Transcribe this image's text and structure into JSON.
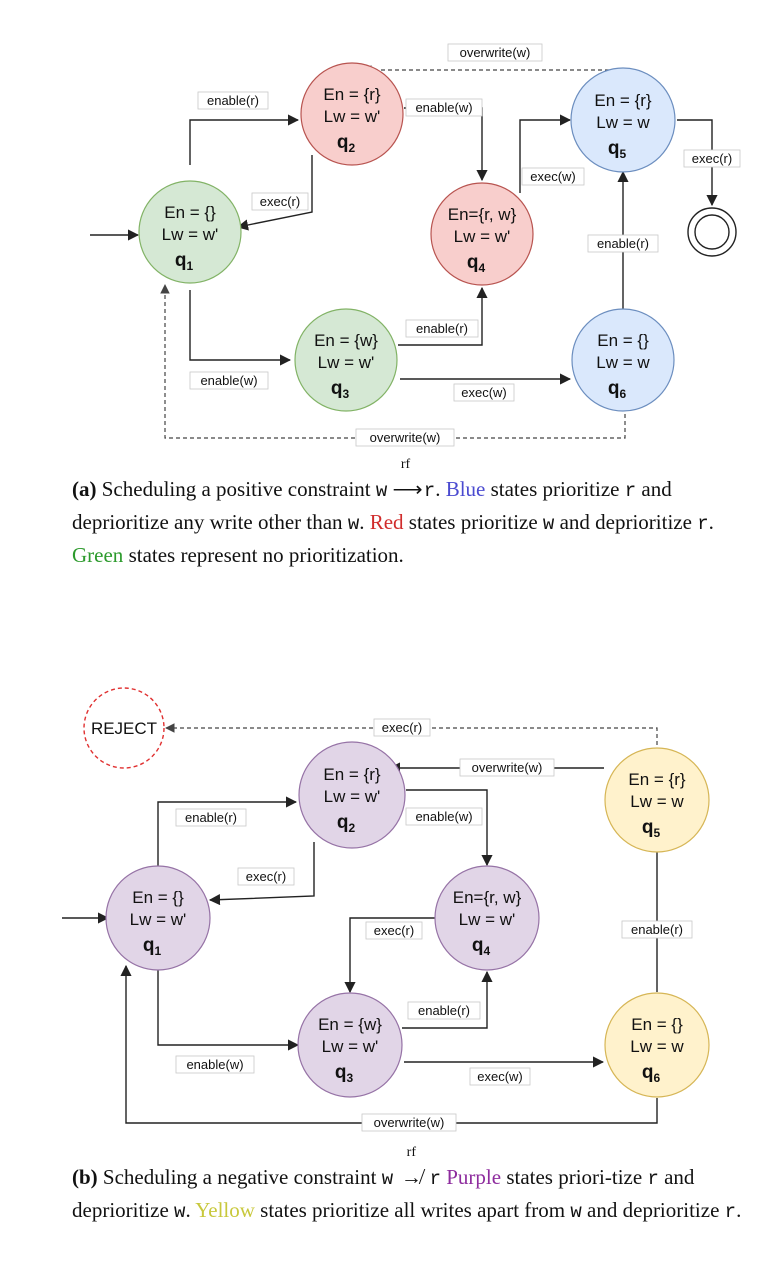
{
  "figure_a": {
    "states": {
      "q1": {
        "en": "En = {}",
        "lw": "Lw = w'",
        "name": "q",
        "sub": "1",
        "color": "#d5e8d4"
      },
      "q2": {
        "en": "En = {r}",
        "lw": "Lw = w'",
        "name": "q",
        "sub": "2",
        "color": "#f8cecc"
      },
      "q3": {
        "en": "En = {w}",
        "lw": "Lw = w'",
        "name": "q",
        "sub": "3",
        "color": "#d5e8d4"
      },
      "q4": {
        "en": "En={r, w}",
        "lw": "Lw = w'",
        "name": "q",
        "sub": "4",
        "color": "#f8cecc"
      },
      "q5": {
        "en": "En = {r}",
        "lw": "Lw = w",
        "name": "q",
        "sub": "5",
        "color": "#dae8fc"
      },
      "q6": {
        "en": "En = {}",
        "lw": "Lw = w",
        "name": "q",
        "sub": "6",
        "color": "#dae8fc"
      }
    },
    "edges": {
      "q1_q2": "enable(r)",
      "q2_q1": "exec(r)",
      "q1_q3": "enable(w)",
      "q2_q4": "enable(w)",
      "q3_q4": "enable(r)",
      "q3_q6": "exec(w)",
      "q4_q5": "exec(w)",
      "q6_q5": "enable(r)",
      "q5_final": "exec(r)",
      "q5_q2": "overwrite(w)",
      "q6_q1": "overwrite(w)"
    }
  },
  "caption_a": {
    "label": "(a)",
    "t1": "Scheduling a positive constraint",
    "w": "w",
    "rf": "rf",
    "arrow": "⟶",
    "r": "r",
    "t2": ".",
    "blue": "Blue",
    "t3": "states prioritize",
    "r2": "r",
    "t4": "and deprioritize any write other than",
    "w2": "w",
    "t5": ".",
    "red": "Red",
    "t6": "states prioritize",
    "w3": "w",
    "t7": "and deprioritize",
    "r3": "r",
    "t8": ".",
    "green": "Green",
    "t9": "states represent no prioritization."
  },
  "figure_b": {
    "reject": "REJECT",
    "states": {
      "q1": {
        "en": "En = {}",
        "lw": "Lw = w'",
        "name": "q",
        "sub": "1",
        "color": "#e1d5e7"
      },
      "q2": {
        "en": "En = {r}",
        "lw": "Lw = w'",
        "name": "q",
        "sub": "2",
        "color": "#e1d5e7"
      },
      "q3": {
        "en": "En = {w}",
        "lw": "Lw = w'",
        "name": "q",
        "sub": "3",
        "color": "#e1d5e7"
      },
      "q4": {
        "en": "En={r, w}",
        "lw": "Lw = w'",
        "name": "q",
        "sub": "4",
        "color": "#e1d5e7"
      },
      "q5": {
        "en": "En = {r}",
        "lw": "Lw = w",
        "name": "q",
        "sub": "5",
        "color": "#fff2cc"
      },
      "q6": {
        "en": "En = {}",
        "lw": "Lw = w",
        "name": "q",
        "sub": "6",
        "color": "#fff2cc"
      }
    },
    "edges": {
      "q1_q2": "enable(r)",
      "q2_q1": "exec(r)",
      "q1_q3": "enable(w)",
      "q2_q4": "enable(w)",
      "q4_q3": "exec(r)",
      "q3_q4": "enable(r)",
      "q3_q6": "exec(w)",
      "q6_q5": "enable(r)",
      "q5_q2": "overwrite(w)",
      "q5_reject": "exec(r)",
      "q6_q1": "overwrite(w)"
    }
  },
  "caption_b": {
    "label": "(b)",
    "t1": "Scheduling a negative constraint",
    "w": "w",
    "rf": "rf",
    "arrow": "↛",
    "r": "r",
    "purple": "Purple",
    "t2": "states priori-tize",
    "r2": "r",
    "t3": "and deprioritize",
    "w2": "w",
    "t4": ".",
    "yellow": "Yellow",
    "t5": "states prioritize all writes apart from",
    "w3": "w",
    "t6": "and deprioritize",
    "r3": "r",
    "t7": "."
  },
  "colors": {
    "blue_text": "#4a4ad0",
    "red_text": "#d02c2c",
    "green_text": "#2c9a2c",
    "purple_text": "#8e2c9e",
    "yellow_text": "#c8c83c",
    "reject_stroke": "#e03030"
  }
}
